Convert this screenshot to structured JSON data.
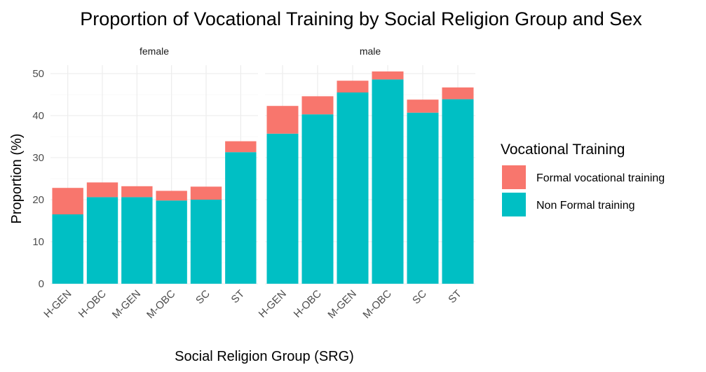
{
  "chart_data": {
    "type": "bar",
    "stacked": true,
    "title": "Proportion of Vocational Training by Social Religion Group and Sex",
    "xlabel": "Social Religion Group (SRG)",
    "ylabel": "Proportion (%)",
    "ylim": [
      0,
      52
    ],
    "yticks": [
      0,
      10,
      20,
      30,
      40,
      50
    ],
    "categories": [
      "H-GEN",
      "H-OBC",
      "M-GEN",
      "M-OBC",
      "SC",
      "ST"
    ],
    "legend": {
      "title": "Vocational Training",
      "position": "right"
    },
    "series_styles": [
      {
        "name": "Formal vocational training",
        "color": "#F8766D"
      },
      {
        "name": "Non Formal training",
        "color": "#00BFC4"
      }
    ],
    "facets": [
      {
        "label": "female",
        "series": [
          {
            "name": "Non Formal training",
            "values": [
              16.5,
              20.6,
              20.6,
              19.8,
              20.0,
              31.3
            ]
          },
          {
            "name": "Formal vocational training",
            "values": [
              6.3,
              3.5,
              2.6,
              2.3,
              3.1,
              2.6
            ]
          }
        ]
      },
      {
        "label": "male",
        "series": [
          {
            "name": "Non Formal training",
            "values": [
              35.7,
              40.3,
              45.5,
              48.6,
              40.7,
              43.9
            ]
          },
          {
            "name": "Formal vocational training",
            "values": [
              6.6,
              4.3,
              2.8,
              1.9,
              3.1,
              2.8
            ]
          }
        ]
      }
    ]
  }
}
